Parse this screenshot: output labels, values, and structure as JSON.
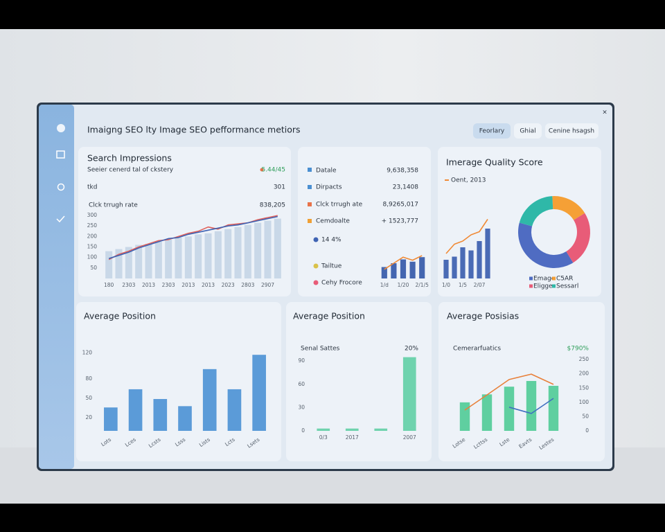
{
  "header": {
    "title": "Imaigng SEO lty Image SEO pefformance metiors",
    "buttons": [
      "Feorlary",
      "Ghial",
      "Cenine hsagsh"
    ]
  },
  "panels": [
    {
      "title": "Search Impressions",
      "subtitle": "Seeier cenerd tal of ckstery",
      "badge": "5.44/45",
      "rows": [
        [
          "tkd",
          "301"
        ],
        [
          "Clck trrugh rate",
          "838,205"
        ]
      ]
    },
    {
      "rows": [
        [
          "Datale",
          "9,638,358"
        ],
        [
          "Dirpacts",
          "23,1408"
        ],
        [
          "Clck trrugh ate",
          "8,9265,017"
        ],
        [
          "Cemdoalte",
          "+ 1523,777"
        ]
      ],
      "highlight": "14 4%",
      "notes": [
        "Tailtue",
        "Cehy Frocore"
      ]
    },
    {
      "title": "Imerage Quality Score",
      "legend": "Oent, 2013"
    },
    {
      "title": "Average Position"
    },
    {
      "title": "Average Position",
      "label": "Senal Sattes",
      "badge": "20%"
    },
    {
      "title": "Average Posisias",
      "label": "Cemerarfuatics",
      "badge": "$790%"
    }
  ],
  "chart_data": [
    {
      "type": "bar",
      "categories": [
        "180",
        null,
        "2303",
        null,
        "2013",
        null,
        "2303",
        null,
        "2013",
        null,
        "2013",
        null,
        "2023",
        null,
        "2803",
        null,
        "2907",
        null
      ],
      "series": [
        {
          "mark": "bar",
          "color": "#c9d8e8",
          "values": [
            130,
            140,
            150,
            160,
            165,
            175,
            185,
            195,
            200,
            210,
            215,
            225,
            235,
            245,
            255,
            265,
            275,
            285
          ]
        },
        {
          "mark": "line",
          "color": "#e0605a",
          "values": [
            90,
            115,
            130,
            150,
            165,
            180,
            185,
            200,
            215,
            225,
            245,
            235,
            255,
            260,
            265,
            280,
            290,
            300
          ]
        },
        {
          "mark": "line",
          "color": "#3f63b3",
          "values": [
            95,
            110,
            125,
            145,
            160,
            175,
            190,
            195,
            210,
            220,
            230,
            240,
            250,
            255,
            265,
            275,
            285,
            295
          ]
        }
      ],
      "ylim": [
        0,
        320
      ],
      "yticks": [
        50,
        100,
        150,
        200,
        250,
        300
      ]
    },
    {
      "type": "bar",
      "categories": [
        "1/d",
        null,
        "1/20",
        null,
        "2/1/5"
      ],
      "series": [
        {
          "mark": "bar",
          "color": "#4466b0",
          "values": [
            15,
            20,
            25,
            22,
            28
          ]
        },
        {
          "mark": "line",
          "color": "#f08a35",
          "values": [
            12,
            20,
            28,
            24,
            30
          ]
        }
      ],
      "ylim": [
        0,
        40
      ]
    },
    {
      "type": "bar",
      "categories": [
        "1/0",
        null,
        "1/5",
        null,
        "2/07",
        null
      ],
      "series": [
        {
          "mark": "bar",
          "color": "#4a6bb5",
          "values": [
            30,
            35,
            50,
            45,
            60,
            80
          ]
        },
        {
          "mark": "line",
          "color": "#f08a35",
          "values": [
            40,
            55,
            60,
            70,
            75,
            95
          ]
        }
      ],
      "ylim": [
        0,
        100
      ]
    },
    {
      "type": "bar",
      "categories": [
        "Lots",
        "Lces",
        "Lcsts",
        "Lsss",
        "Lists",
        "Lcts",
        "Lsets"
      ],
      "series": [
        {
          "mark": "bar",
          "color": "#5b9bd8",
          "values": [
            36,
            64,
            49,
            38,
            95,
            64,
            117
          ]
        }
      ],
      "ylim": [
        0,
        130
      ],
      "yticks": [
        20,
        50,
        80,
        120
      ]
    },
    {
      "type": "bar",
      "categories": [
        "0/3",
        "2017",
        null,
        "2007"
      ],
      "series": [
        {
          "mark": "bar",
          "color": "#6fd3ae",
          "values": [
            3,
            3,
            3,
            95
          ]
        }
      ],
      "ylim": [
        0,
        100
      ],
      "yticks": [
        0,
        30,
        60,
        90
      ]
    },
    {
      "type": "bar",
      "categories": [
        "Lotse",
        "Lcttss",
        "Lste",
        "Eavts",
        "Lestes"
      ],
      "series": [
        {
          "mark": "bar",
          "color": "#5fcfa0",
          "values": [
            100,
            128,
            155,
            175,
            158
          ]
        },
        {
          "mark": "line",
          "color": "#e8803a",
          "values": [
            73,
            126,
            180,
            199,
            163
          ]
        },
        {
          "mark": "line",
          "color": "#3f6fc0",
          "values": [
            null,
            null,
            83,
            61,
            114
          ]
        }
      ],
      "ylim": [
        0,
        260
      ],
      "yticks": [
        0,
        50,
        100,
        150,
        200,
        250
      ]
    },
    {
      "type": "donut",
      "categories": [
        "Emage",
        "Eligge",
        "C5AR",
        "Sessarl"
      ],
      "values": [
        38,
        25,
        17,
        20
      ],
      "colors": [
        "#4f6cc2",
        "#e85c78",
        "#f5a036",
        "#2fb8a8"
      ]
    }
  ]
}
